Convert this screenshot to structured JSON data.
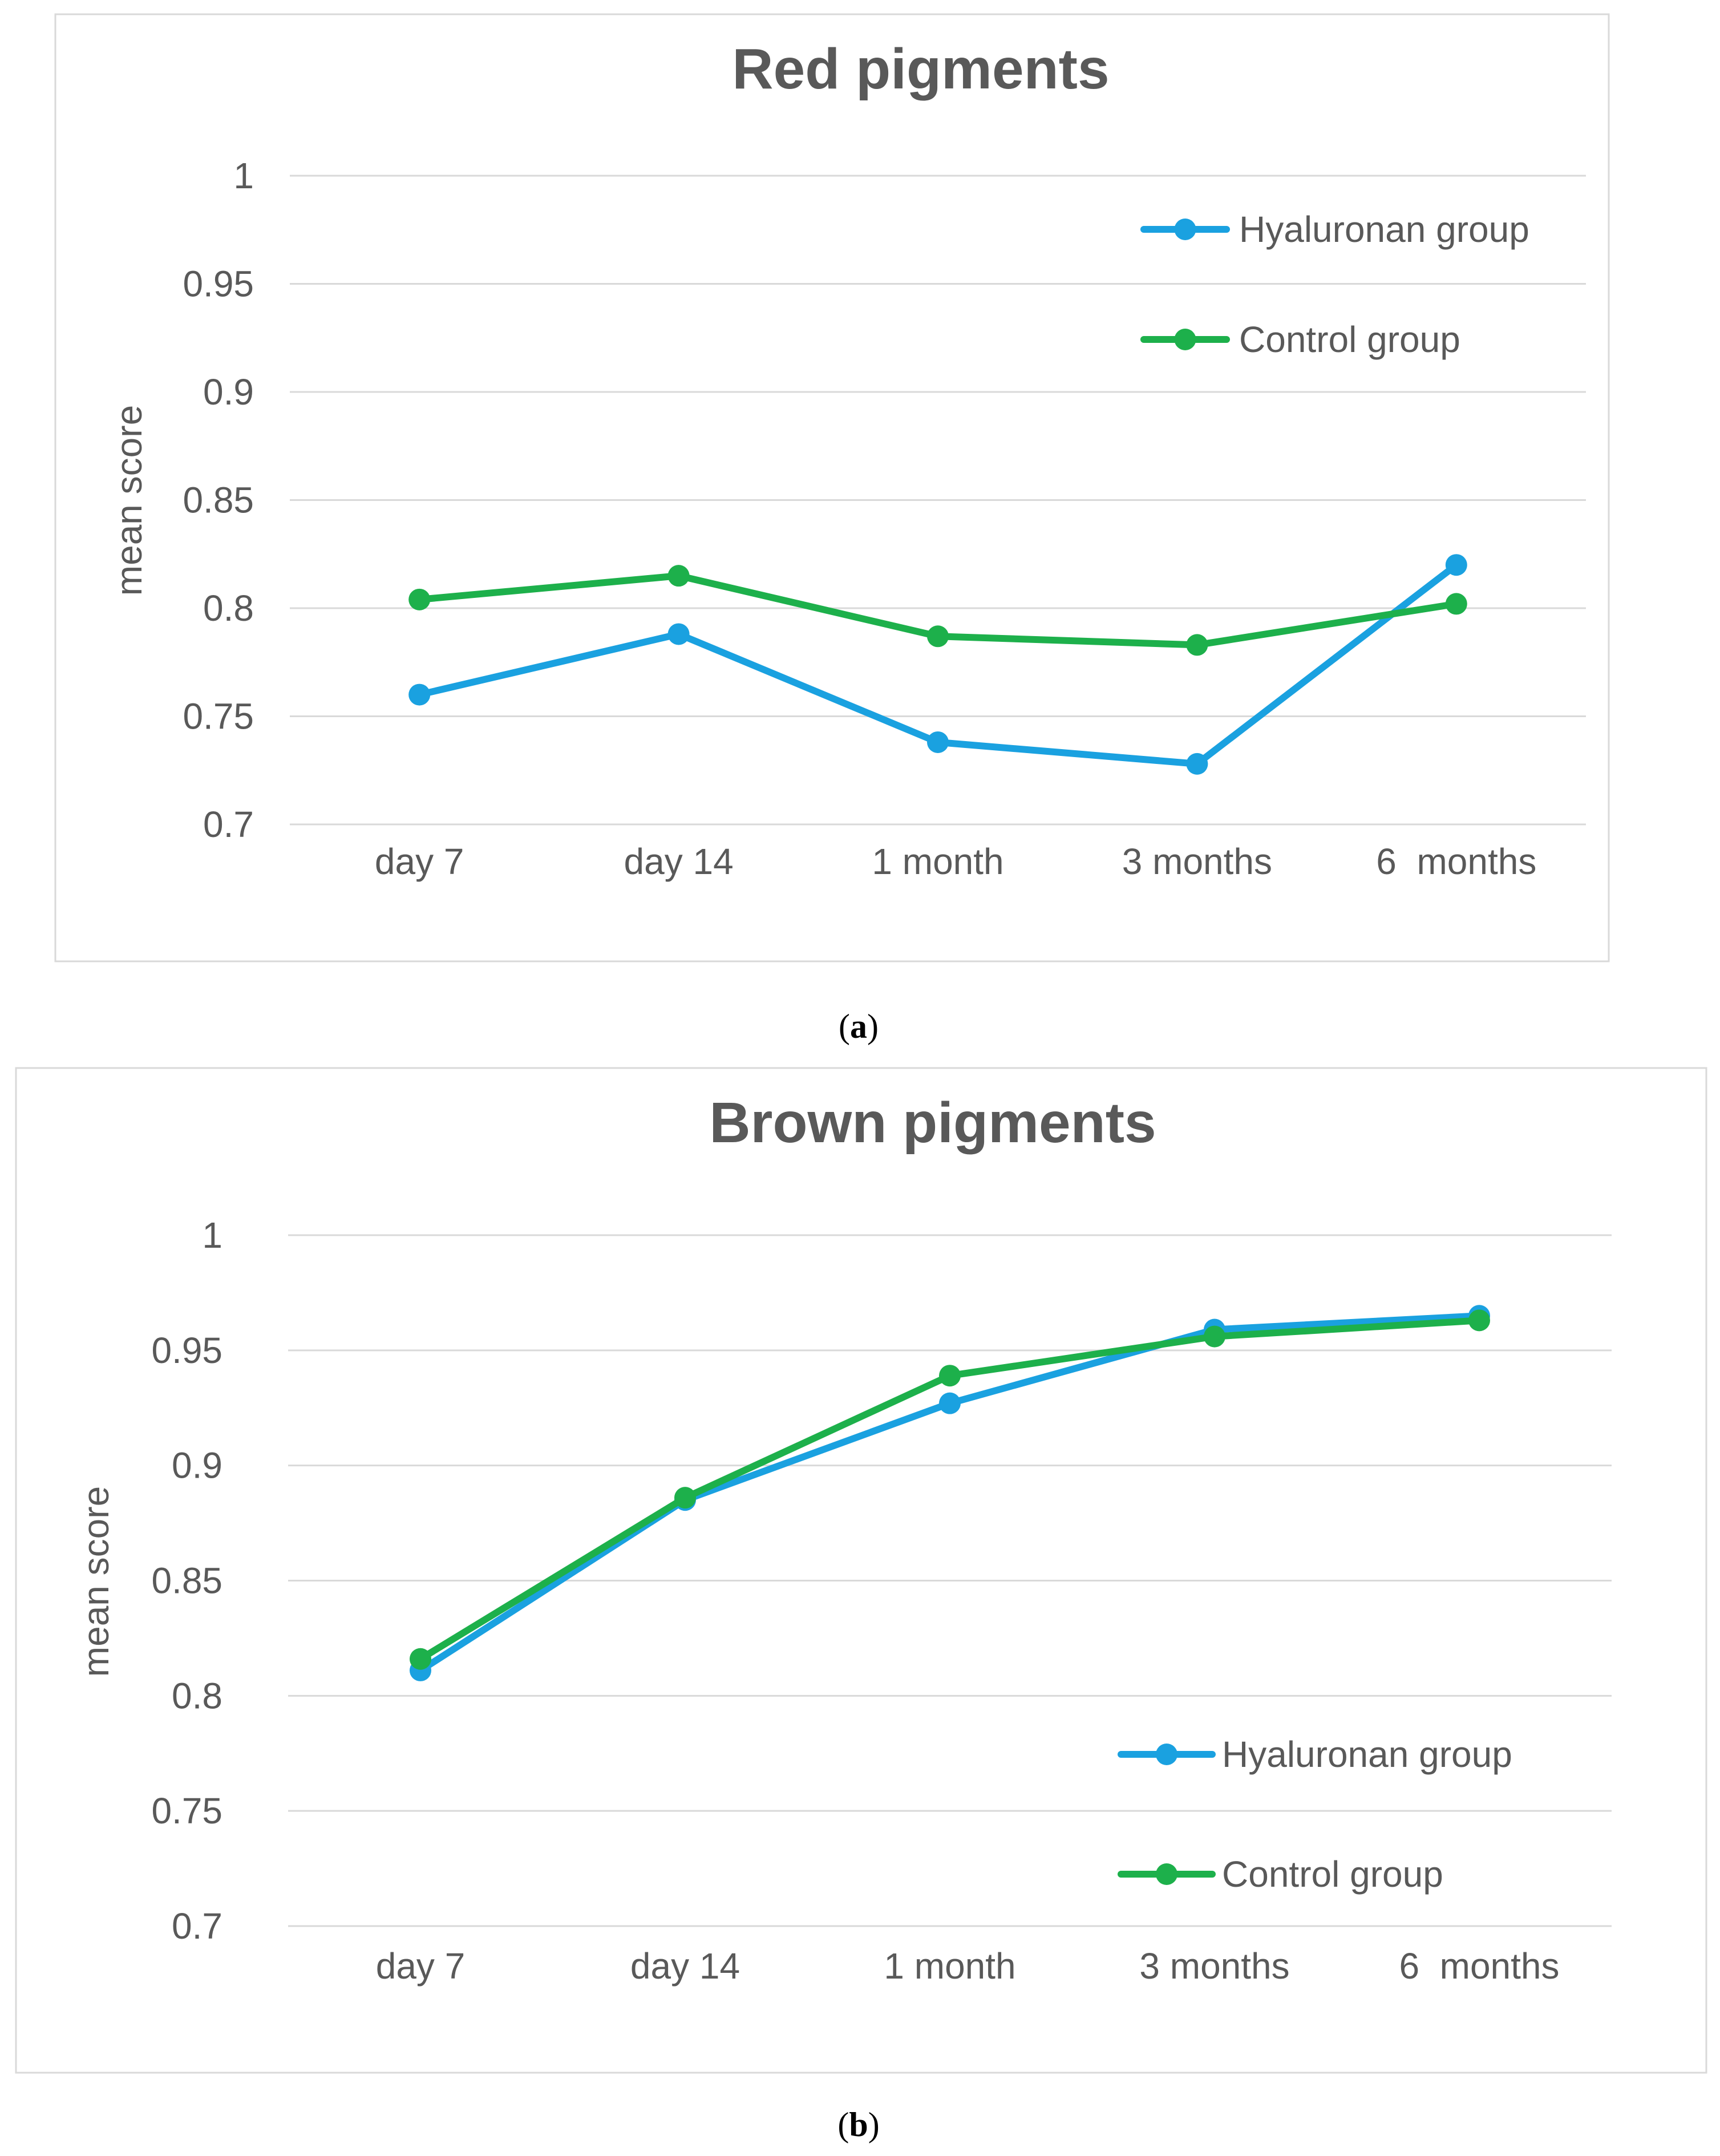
{
  "chart_data": [
    {
      "type": "line",
      "title": "Red pigments",
      "ylabel": "mean score",
      "xlabel": "",
      "categories": [
        "day 7",
        "day 14",
        "1 month",
        "3 months",
        "6  months"
      ],
      "yticks": [
        "1",
        "0.95",
        "0.9",
        "0.85",
        "0.8",
        "0.75",
        "0.7"
      ],
      "ylim": [
        0.7,
        1.0
      ],
      "grid": true,
      "legend_position": "top-right",
      "series": [
        {
          "name": "Hyaluronan group",
          "color": "#1AA1E0",
          "values": [
            0.76,
            0.788,
            0.738,
            0.728,
            0.82
          ]
        },
        {
          "name": "Control group",
          "color": "#1DB04B",
          "values": [
            0.804,
            0.815,
            0.787,
            0.783,
            0.802
          ]
        }
      ]
    },
    {
      "type": "line",
      "title": "Brown pigments",
      "ylabel": "mean score",
      "xlabel": "",
      "categories": [
        "day 7",
        "day 14",
        "1 month",
        "3 months",
        "6  months"
      ],
      "yticks": [
        "1",
        "0.95",
        "0.9",
        "0.85",
        "0.8",
        "0.75",
        "0.7"
      ],
      "ylim": [
        0.7,
        1.0
      ],
      "grid": true,
      "legend_position": "bottom-right",
      "series": [
        {
          "name": "Hyaluronan group",
          "color": "#1AA1E0",
          "values": [
            0.811,
            0.885,
            0.927,
            0.959,
            0.965
          ]
        },
        {
          "name": "Control group",
          "color": "#1DB04B",
          "values": [
            0.816,
            0.886,
            0.939,
            0.956,
            0.963
          ]
        }
      ]
    }
  ],
  "panel_labels": [
    {
      "open": "(",
      "letter": "a",
      "close": ")"
    },
    {
      "open": "(",
      "letter": "b",
      "close": ")"
    }
  ]
}
